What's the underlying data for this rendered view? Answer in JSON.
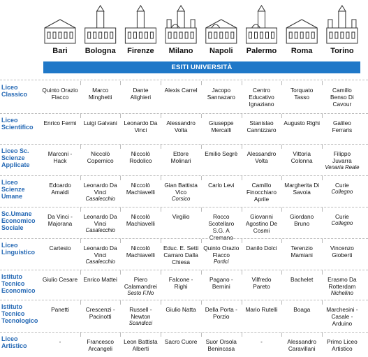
{
  "header": {
    "cities": [
      "Bari",
      "Bologna",
      "Firenze",
      "Milano",
      "Napoli",
      "Palermo",
      "Roma",
      "Torino"
    ],
    "banner": "ESITI UNIVERSITÀ"
  },
  "table": {
    "rows": [
      {
        "label": "Liceo Classico",
        "cells": [
          {
            "name": "Quinto Orazio Flacco"
          },
          {
            "name": "Marco Minghetti"
          },
          {
            "name": "Dante Alighieri"
          },
          {
            "name": "Alexis Carrel"
          },
          {
            "name": "Jacopo Sannazaro"
          },
          {
            "name": "Centro Educativo Ignaziano"
          },
          {
            "name": "Torquato Tasso"
          },
          {
            "name": "Camillo Benso Di Cavour"
          }
        ]
      },
      {
        "label": "Liceo Scientifico",
        "cells": [
          {
            "name": "Enrico Fermi"
          },
          {
            "name": "Luigi Galvani"
          },
          {
            "name": "Leonardo Da Vinci"
          },
          {
            "name": "Alessandro Volta"
          },
          {
            "name": "Giuseppe Mercalli"
          },
          {
            "name": "Stanislao Cannizzaro"
          },
          {
            "name": "Augusto Righi"
          },
          {
            "name": "Galileo Ferraris"
          }
        ]
      },
      {
        "label": "Liceo Sc. Scienze Applicate",
        "cells": [
          {
            "name": "Marconi - Hack"
          },
          {
            "name": "Niccolò Copernico"
          },
          {
            "name": "Niccolò Rodolico"
          },
          {
            "name": "Ettore Molinari"
          },
          {
            "name": "Emilio Segrè"
          },
          {
            "name": "Alessandro Volta"
          },
          {
            "name": "Vittoria Colonna"
          },
          {
            "name": "Filippo Juvarra",
            "note": "Venaria Reale"
          }
        ]
      },
      {
        "label": "Liceo Scienze Umane",
        "cells": [
          {
            "name": "Edoardo Amaldi"
          },
          {
            "name": "Leonardo Da Vinci",
            "note": "Casalecchio"
          },
          {
            "name": "Niccolò Machiavelli"
          },
          {
            "name": "Gian Battista Vico",
            "note": "Corsico"
          },
          {
            "name": "Carlo Levi"
          },
          {
            "name": "Camillo Finocchiaro Aprile"
          },
          {
            "name": "Margherita Di Savoia"
          },
          {
            "name": "Curie",
            "note": "Collegno"
          }
        ]
      },
      {
        "label": "Sc.Umane Economico Sociale",
        "cells": [
          {
            "name": "Da Vinci - Majorana"
          },
          {
            "name": "Leonardo Da Vinci",
            "note": "Casalecchio"
          },
          {
            "name": "Niccolò Machiavelli"
          },
          {
            "name": "Virgilio"
          },
          {
            "name": "Rocco Scotellaro S.G. A Cremano"
          },
          {
            "name": "Giovanni Agostino De Cosmi"
          },
          {
            "name": "Giordano Bruno"
          },
          {
            "name": "Curie",
            "note": "Collegno"
          }
        ]
      },
      {
        "label": "Liceo Linguistico",
        "cells": [
          {
            "name": "Cartesio"
          },
          {
            "name": "Leonardo Da Vinci",
            "note": "Casalecchio"
          },
          {
            "name": "Niccolò Machiavelli"
          },
          {
            "name": "Educ. E. Setti Carraro Dalla Chiesa"
          },
          {
            "name": "Quinto Orazio Flacco",
            "note": "Portici"
          },
          {
            "name": "Danilo Dolci"
          },
          {
            "name": "Terenzio Mamiani"
          },
          {
            "name": "Vincenzo Gioberti"
          }
        ]
      },
      {
        "label": "Istituto Tecnico Economico",
        "cells": [
          {
            "name": "Giulio Cesare"
          },
          {
            "name": "Enrico Mattei"
          },
          {
            "name": "Piero Calamandrei",
            "note": "Sesto F.No"
          },
          {
            "name": "Falcone - Righi"
          },
          {
            "name": "Pagano - Bernini"
          },
          {
            "name": "Vilfredo Pareto"
          },
          {
            "name": "Bachelet"
          },
          {
            "name": "Erasmo Da Rotterdam",
            "note": "Nichelino"
          }
        ]
      },
      {
        "label": "Istituto Tecnico Tecnologico",
        "cells": [
          {
            "name": "Panetti"
          },
          {
            "name": "Crescenzi - Pacinotti"
          },
          {
            "name": "Russell - Newton",
            "note": "Scandicci"
          },
          {
            "name": "Giulio Natta"
          },
          {
            "name": "Della Porta - Porzio"
          },
          {
            "name": "Mario Rutelli"
          },
          {
            "name": "Boaga"
          },
          {
            "name": "Marchesini - Casale - Arduino"
          }
        ]
      },
      {
        "label": "Liceo Artistico",
        "cells": [
          {
            "name": "-"
          },
          {
            "name": "Francesco Arcangeli"
          },
          {
            "name": "Leon Battista Alberti"
          },
          {
            "name": "Sacro Cuore"
          },
          {
            "name": "Suor Orsola Benincasa"
          },
          {
            "name": "-"
          },
          {
            "name": "Alessandro Caravillani"
          },
          {
            "name": "Primo Liceo Artistico"
          }
        ]
      }
    ]
  }
}
